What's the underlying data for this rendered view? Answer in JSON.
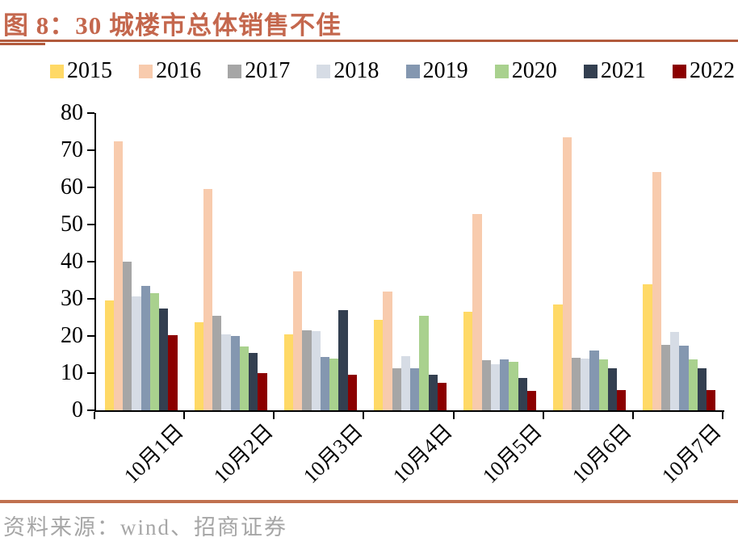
{
  "header": {
    "title": "图 8：30 城楼市总体销售不佳",
    "title_color": "#C4674D"
  },
  "chart_data": {
    "type": "bar",
    "title": "图 8：30 城楼市总体销售不佳",
    "categories": [
      "10月1日",
      "10月2日",
      "10月3日",
      "10月4日",
      "10月5日",
      "10月6日",
      "10月7日"
    ],
    "series": [
      {
        "name": "2015",
        "color": "#FFD966",
        "values": [
          29.5,
          23.6,
          20.5,
          24.3,
          26.5,
          28.4,
          34.0
        ]
      },
      {
        "name": "2016",
        "color": "#F8CBAD",
        "values": [
          72.5,
          59.5,
          37.4,
          32.0,
          52.9,
          73.5,
          64.2
        ]
      },
      {
        "name": "2017",
        "color": "#A6A6A6",
        "values": [
          39.9,
          25.4,
          21.6,
          11.4,
          13.5,
          14.1,
          17.7
        ]
      },
      {
        "name": "2018",
        "color": "#D6DCE5",
        "values": [
          30.7,
          20.4,
          21.4,
          14.5,
          12.4,
          14.0,
          21.1
        ]
      },
      {
        "name": "2019",
        "color": "#8497B0",
        "values": [
          33.5,
          19.9,
          14.3,
          11.2,
          13.6,
          16.0,
          17.4
        ]
      },
      {
        "name": "2020",
        "color": "#A9D18E",
        "values": [
          31.5,
          17.1,
          14.0,
          25.5,
          13.0,
          13.6,
          13.8
        ]
      },
      {
        "name": "2021",
        "color": "#333F50",
        "values": [
          27.3,
          15.5,
          27.0,
          9.5,
          8.8,
          11.4,
          11.3
        ]
      },
      {
        "name": "2022",
        "color": "#8B0000",
        "values": [
          20.2,
          10.1,
          9.6,
          7.3,
          5.3,
          5.5,
          5.5
        ]
      }
    ],
    "ylim": [
      0,
      80
    ],
    "yticks": [
      0,
      10,
      20,
      30,
      40,
      50,
      60,
      70,
      80
    ],
    "legend_position": "top",
    "grid": false
  },
  "footer": {
    "source": "资料来源：wind、招商证券"
  },
  "colors": {
    "accent_rule": "#B25A3C",
    "divider": "#C0714F",
    "source_text": "#A6A6A6",
    "axis": "#000000"
  }
}
